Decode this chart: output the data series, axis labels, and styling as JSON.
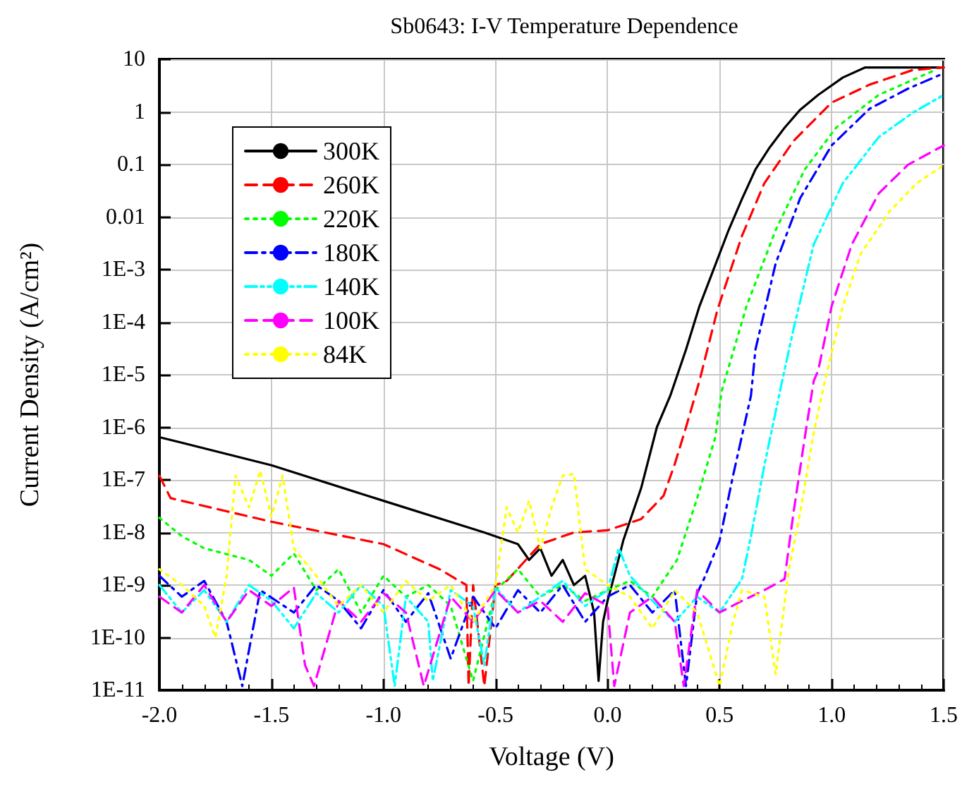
{
  "chart_data": {
    "type": "line",
    "title": "Sb0643: I-V Temperature Dependence",
    "xlabel": "Voltage (V)",
    "ylabel": "Current Density (A/cm²)",
    "log": "y",
    "grid": true,
    "legend": "top left",
    "xlim": [
      -2,
      1.5
    ],
    "xticks": [
      {
        "value": -2,
        "label": "-2.0"
      },
      -1.5,
      {
        "value": -1,
        "label": "-1.0"
      },
      -0.5,
      {
        "value": 0,
        "label": "0.0"
      },
      0.5,
      {
        "value": 1,
        "label": "1.0"
      },
      1.5
    ],
    "ylim": [
      1e-11,
      10
    ],
    "yticks": [
      {
        "value": 1e-11,
        "label": "1E-11"
      },
      {
        "value": 1e-10,
        "label": "1E-10"
      },
      {
        "value": 1e-09,
        "label": "1E-9"
      },
      {
        "value": 1e-08,
        "label": "1E-8"
      },
      {
        "value": 1e-07,
        "label": "1E-7"
      },
      {
        "value": 1e-06,
        "label": "1E-6"
      },
      {
        "value": 1e-05,
        "label": "1E-5"
      },
      {
        "value": 0.0001,
        "label": "1E-4"
      },
      {
        "value": 0.001,
        "label": "1E-3"
      },
      0.01,
      0.1,
      1,
      10
    ],
    "series": [
      {
        "name": "300K",
        "color": "#000000",
        "line_style": "solid",
        "x": [
          -2,
          -1.5,
          -1,
          -0.55,
          -0.4,
          -0.35,
          -0.3,
          -0.25,
          -0.2,
          -0.15,
          -0.1,
          -0.06,
          -0.04,
          -0.02,
          0,
          0.03,
          0.07,
          0.15,
          0.22,
          0.28,
          0.35,
          0.41,
          0.48,
          0.54,
          0.6,
          0.66,
          0.72,
          0.79,
          0.86,
          0.94,
          1.05,
          1.15,
          1.3,
          1.5
        ],
        "values": [
          6.5e-07,
          1.9e-07,
          4e-08,
          1e-08,
          6e-09,
          3e-09,
          5e-09,
          1.5e-09,
          3e-09,
          1e-09,
          1.5e-09,
          3e-10,
          1.5e-11,
          2e-10,
          5e-10,
          1.5e-09,
          7e-09,
          7e-08,
          1e-06,
          4e-06,
          3e-05,
          0.0002,
          0.0012,
          0.0056,
          0.022,
          0.08,
          0.2,
          0.5,
          1.1,
          2.1,
          4.5,
          7,
          7,
          7
        ]
      },
      {
        "name": "260K",
        "color": "#ff0000",
        "line_style": "dashed",
        "x": [
          -2,
          -1.95,
          -1.5,
          -1,
          -0.75,
          -0.63,
          -0.62,
          -0.6,
          -0.55,
          -0.5,
          -0.45,
          -0.3,
          -0.15,
          0,
          0.15,
          0.25,
          0.3,
          0.35,
          0.41,
          0.49,
          0.6,
          0.7,
          0.83,
          1,
          1.17,
          1.36,
          1.5
        ],
        "values": [
          1.2e-07,
          4.5e-08,
          1.6e-08,
          6e-09,
          2e-09,
          1e-09,
          1.2e-11,
          1e-09,
          1.2e-11,
          1e-09,
          1.2e-09,
          6e-09,
          1e-08,
          1.1e-08,
          1.8e-08,
          5e-08,
          2e-07,
          1e-06,
          7.6e-06,
          0.00017,
          0.0044,
          0.044,
          0.28,
          1.5,
          3.3,
          6.2,
          7
        ]
      },
      {
        "name": "220K",
        "color": "#00ff00",
        "line_style": "dotted",
        "x": [
          -2,
          -1.9,
          -1.8,
          -1.6,
          -1.5,
          -1.4,
          -1.3,
          -1.2,
          -1.1,
          -1,
          -0.9,
          -0.8,
          -0.7,
          -0.6,
          -0.5,
          -0.4,
          -0.3,
          -0.2,
          -0.1,
          0,
          0.1,
          0.2,
          0.31,
          0.4,
          0.48,
          0.51,
          0.62,
          0.75,
          0.88,
          1.02,
          1.21,
          1.46
        ],
        "values": [
          1.9e-08,
          8.5e-09,
          5e-09,
          3e-09,
          1.5e-09,
          4e-09,
          8e-10,
          2e-09,
          3e-10,
          1.5e-09,
          6e-10,
          1e-09,
          4e-10,
          1.5e-11,
          8e-10,
          2e-09,
          6e-10,
          1e-09,
          5e-10,
          8e-10,
          1.2e-09,
          6e-10,
          3e-09,
          4.5e-08,
          6.3e-07,
          5e-06,
          0.0002,
          0.0056,
          0.08,
          0.5,
          2.1,
          6.2
        ]
      },
      {
        "name": "180K",
        "color": "#0000ff",
        "line_style": "dashdot",
        "x": [
          -2,
          -1.9,
          -1.8,
          -1.7,
          -1.63,
          -1.55,
          -1.4,
          -1.3,
          -1.2,
          -1.1,
          -1,
          -0.9,
          -0.8,
          -0.7,
          -0.6,
          -0.5,
          -0.4,
          -0.3,
          -0.2,
          -0.1,
          0,
          0.1,
          0.2,
          0.3,
          0.35,
          0.4,
          0.43,
          0.5,
          0.56,
          0.64,
          0.66,
          0.75,
          0.86,
          1,
          1.17,
          1.34,
          1.5
        ],
        "values": [
          1.5e-09,
          6e-10,
          1.2e-09,
          2e-10,
          1.2e-11,
          8e-10,
          3e-10,
          1e-09,
          5e-10,
          1.5e-10,
          8e-10,
          2e-10,
          7e-10,
          4e-11,
          6e-10,
          1.5e-10,
          8e-10,
          3e-10,
          1e-09,
          2e-10,
          6e-10,
          1e-09,
          3e-10,
          8e-10,
          1.2e-11,
          7e-10,
          1.3e-09,
          7e-09,
          1.2e-07,
          4e-06,
          3e-05,
          0.0013,
          0.023,
          0.23,
          1.15,
          2.75,
          5.4
        ]
      },
      {
        "name": "140K",
        "color": "#00ffff",
        "line_style": "dashdotdot",
        "x": [
          -2,
          -1.9,
          -1.8,
          -1.7,
          -1.6,
          -1.5,
          -1.4,
          -1.3,
          -1.2,
          -1.1,
          -1,
          -0.95,
          -0.9,
          -0.8,
          -0.78,
          -0.7,
          -0.6,
          -0.55,
          -0.5,
          -0.4,
          -0.3,
          -0.2,
          -0.1,
          0,
          0.05,
          0.1,
          0.2,
          0.3,
          0.4,
          0.5,
          0.6,
          0.64,
          0.7,
          0.77,
          0.83,
          0.92,
          1.05,
          1.21,
          1.36,
          1.5
        ],
        "values": [
          1e-09,
          3e-10,
          8e-10,
          2e-10,
          1e-09,
          5e-10,
          1.5e-10,
          7e-10,
          3e-10,
          1e-09,
          4e-10,
          1.2e-11,
          6e-10,
          2e-10,
          1.5e-11,
          8e-10,
          4e-10,
          3e-11,
          9e-10,
          3e-10,
          6e-10,
          1.2e-09,
          4e-10,
          8e-10,
          5e-09,
          1.5e-09,
          5e-10,
          2e-10,
          6e-10,
          3e-10,
          1.3e-09,
          8.5e-09,
          1.9e-07,
          5e-06,
          7.4e-05,
          0.003,
          0.044,
          0.33,
          0.95,
          2.1
        ]
      },
      {
        "name": "100K",
        "color": "#ff00ff",
        "line_style": "dashed",
        "x": [
          -2,
          -1.9,
          -1.8,
          -1.7,
          -1.6,
          -1.5,
          -1.4,
          -1.35,
          -1.31,
          -1.2,
          -1.1,
          -1,
          -0.9,
          -0.82,
          -0.7,
          -0.6,
          -0.5,
          -0.4,
          -0.3,
          -0.2,
          -0.1,
          0,
          0.03,
          0.1,
          0.2,
          0.3,
          0.34,
          0.4,
          0.5,
          0.6,
          0.7,
          0.79,
          0.83,
          0.88,
          0.92,
          0.94,
          1,
          1.09,
          1.21,
          1.34,
          1.5
        ],
        "values": [
          6e-10,
          3e-10,
          1e-09,
          2e-10,
          8e-10,
          4e-10,
          9e-10,
          3e-11,
          1.2e-11,
          5e-10,
          2e-10,
          7e-10,
          3e-10,
          1.2e-11,
          6e-10,
          2e-10,
          8e-10,
          3e-10,
          5e-10,
          2e-10,
          7e-10,
          4e-10,
          1.2e-11,
          3e-10,
          6e-10,
          2e-10,
          1.2e-11,
          8e-10,
          3e-10,
          5e-10,
          8e-10,
          1.3e-09,
          2.4e-08,
          6.3e-07,
          7.6e-06,
          1.2e-05,
          0.0002,
          0.003,
          0.028,
          0.098,
          0.23
        ]
      },
      {
        "name": "84K",
        "color": "#ffff00",
        "line_style": "dotted",
        "x": [
          -2,
          -1.9,
          -1.8,
          -1.75,
          -1.7,
          -1.66,
          -1.6,
          -1.55,
          -1.5,
          -1.45,
          -1.4,
          -1.3,
          -1.2,
          -1.1,
          -1,
          -0.9,
          -0.8,
          -0.7,
          -0.6,
          -0.5,
          -0.45,
          -0.4,
          -0.35,
          -0.3,
          -0.25,
          -0.2,
          -0.15,
          -0.1,
          0,
          0.1,
          0.2,
          0.3,
          0.4,
          0.5,
          0.56,
          0.6,
          0.7,
          0.75,
          0.8,
          0.81,
          0.86,
          0.92,
          0.97,
          1.05,
          1.13,
          1.26,
          1.38,
          1.49
        ],
        "values": [
          2e-09,
          1e-09,
          4e-10,
          1e-10,
          1.5e-09,
          1.2e-07,
          3e-08,
          1.5e-07,
          2e-08,
          1.2e-07,
          5e-09,
          1.5e-09,
          4e-10,
          1e-09,
          3e-10,
          1.2e-09,
          5e-10,
          1e-09,
          2e-10,
          1e-09,
          3e-08,
          1e-08,
          4e-08,
          5e-09,
          3e-08,
          1.2e-07,
          1.3e-07,
          2e-09,
          1e-09,
          6e-10,
          1.5e-10,
          8e-10,
          3e-10,
          1.2e-11,
          2e-10,
          8e-10,
          6e-10,
          2e-11,
          1e-09,
          2e-09,
          2.4e-08,
          7.8e-07,
          7.6e-06,
          0.0002,
          0.002,
          0.013,
          0.044,
          0.09
        ]
      }
    ]
  }
}
